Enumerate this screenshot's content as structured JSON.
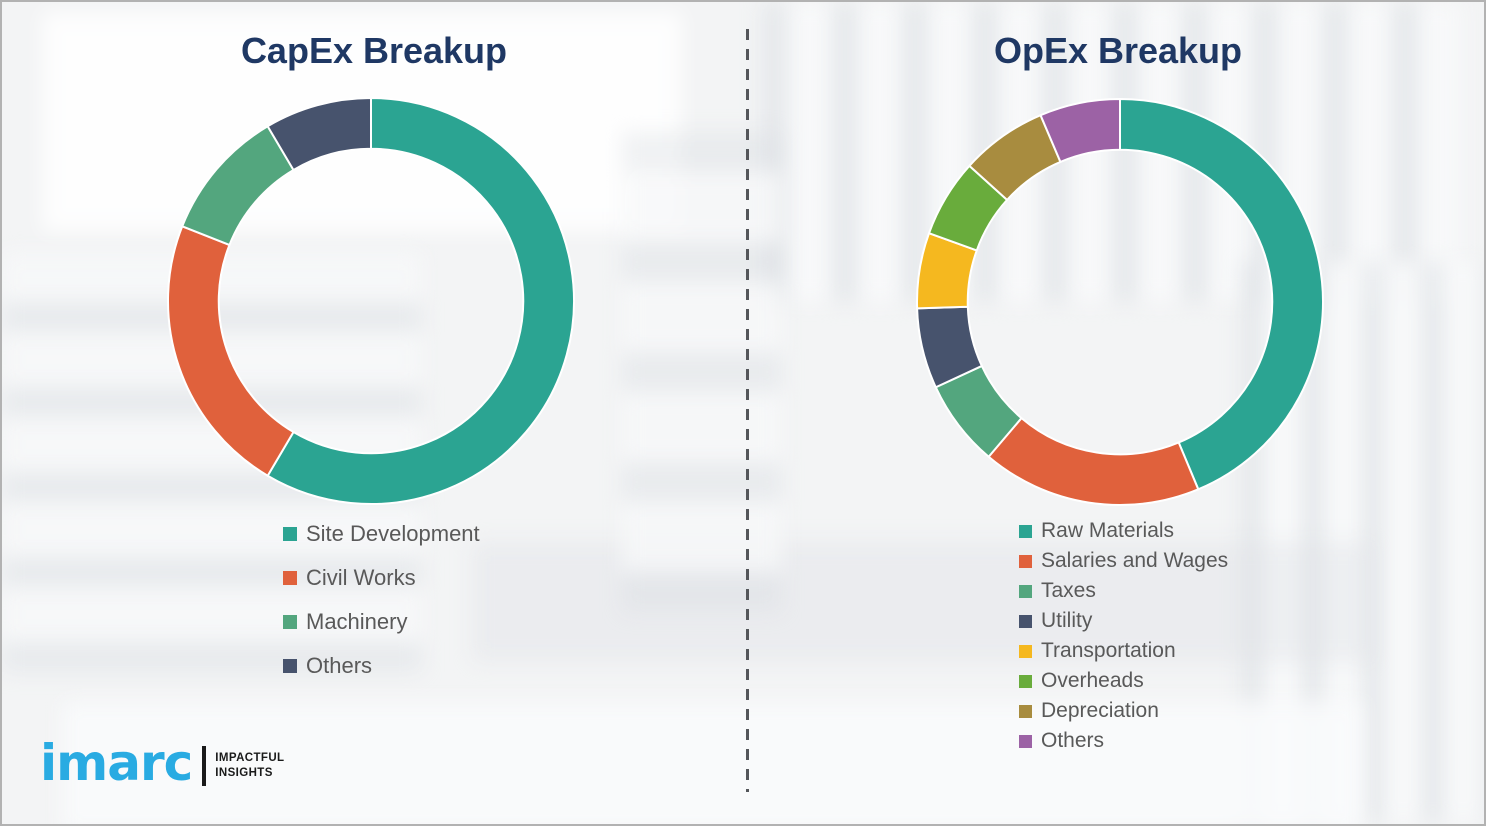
{
  "frame": {
    "background": "#f3f4f5",
    "border_color": "#b2b2b2"
  },
  "divider": {
    "orientation": "vertical",
    "style": "dashed",
    "color": "#54565a"
  },
  "logo": {
    "brand": "imarc",
    "brand_color": "#29abe2",
    "tagline_line1": "IMPACTFUL",
    "tagline_line2": "INSIGHTS"
  },
  "chart_data": [
    {
      "type": "pie",
      "variant": "donut",
      "title": "CapEx Breakup",
      "title_color": "#1f3864",
      "legend_position": "below-left",
      "categories": [
        "Site Development",
        "Civil Works",
        "Machinery",
        "Others"
      ],
      "values": [
        58.5,
        22.5,
        10.5,
        8.5
      ],
      "colors": [
        "#2ba492",
        "#e0613c",
        "#53a67e",
        "#47536d"
      ],
      "start_angle_deg": 0,
      "direction": "clockwise",
      "inner_radius_ratio": 0.75,
      "separator_color": "#ffffff"
    },
    {
      "type": "pie",
      "variant": "donut",
      "title": "OpEx Breakup",
      "title_color": "#1f3864",
      "legend_position": "below-left",
      "categories": [
        "Raw Materials",
        "Salaries and Wages",
        "Taxes",
        "Utility",
        "Transportation",
        "Overheads",
        "Depreciation",
        "Others"
      ],
      "values": [
        43.7,
        17.5,
        6.9,
        6.4,
        6.0,
        6.2,
        6.9,
        6.4
      ],
      "colors": [
        "#2ba492",
        "#e0613c",
        "#53a67e",
        "#47536d",
        "#f5b81f",
        "#69ac3c",
        "#a88c3f",
        "#9c62a5"
      ],
      "start_angle_deg": 0,
      "direction": "clockwise",
      "inner_radius_ratio": 0.75,
      "separator_color": "#ffffff"
    }
  ]
}
